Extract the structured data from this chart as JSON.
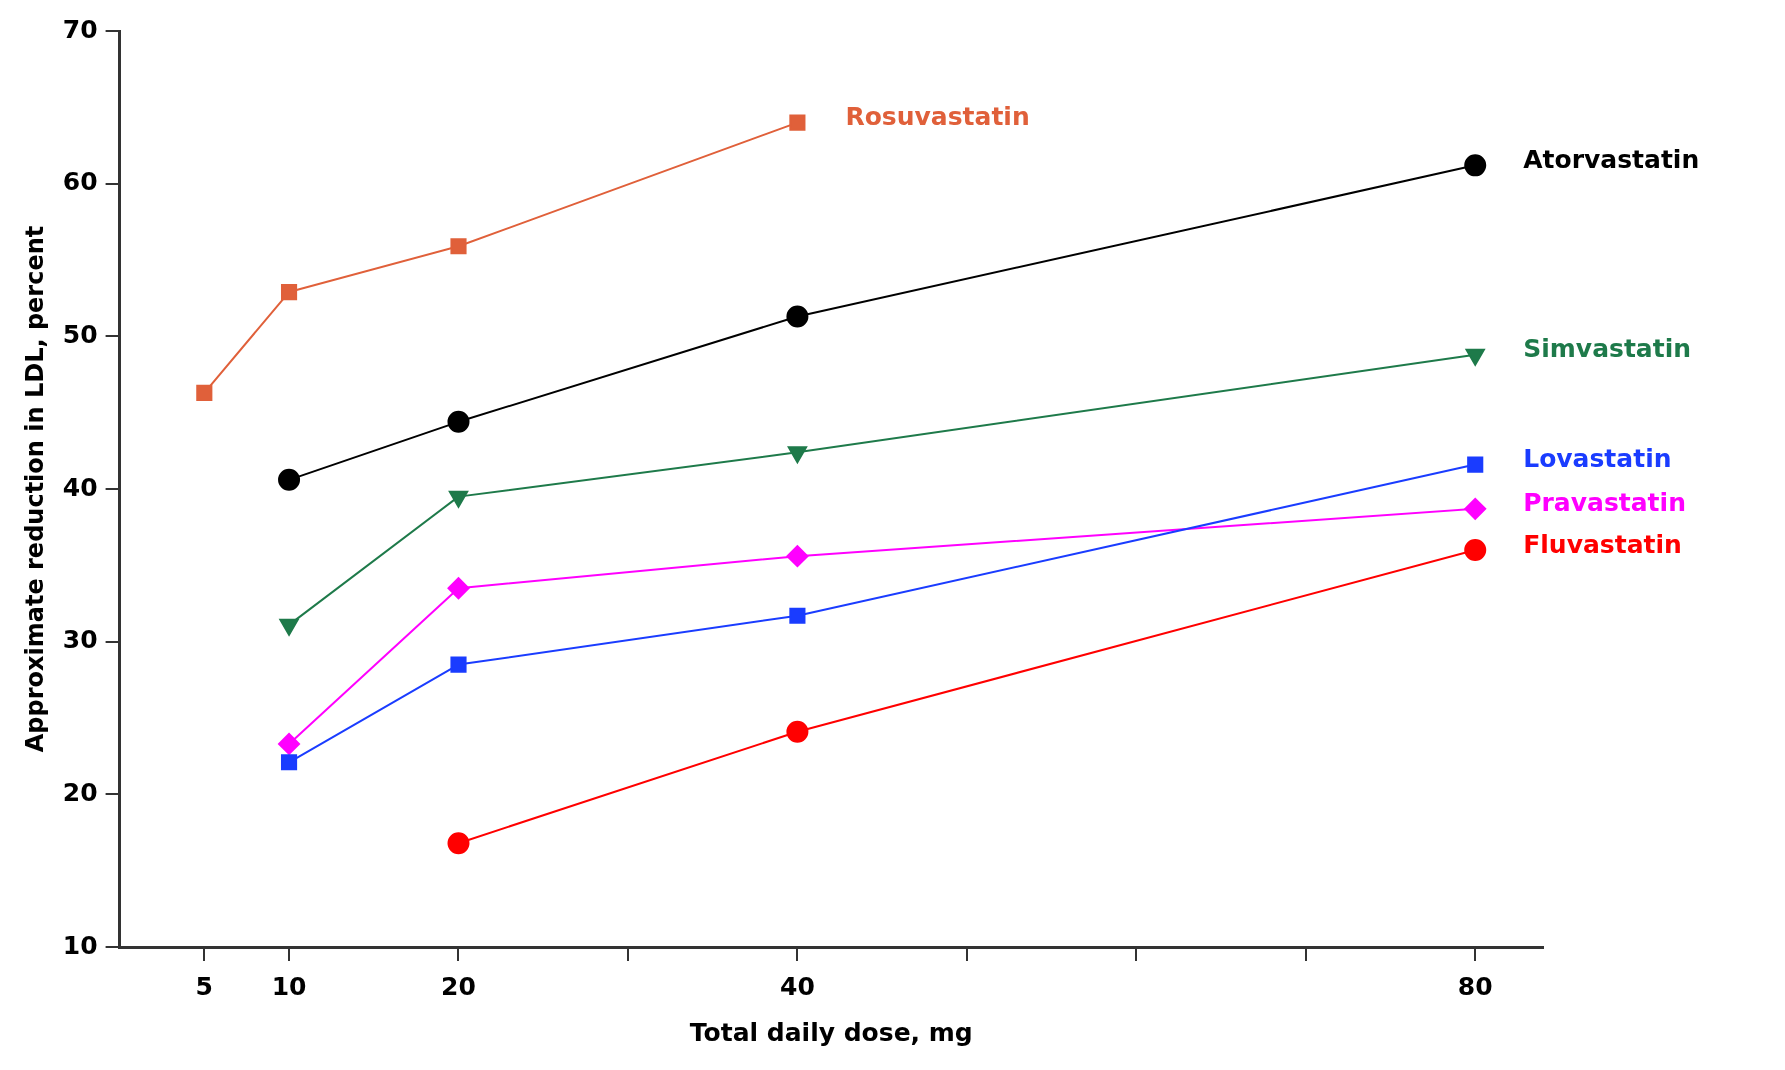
{
  "chart_data": {
    "type": "line",
    "xlabel": "Total daily dose, mg",
    "ylabel": "Approximate reduction in LDL, percent",
    "xlim": [
      0,
      84
    ],
    "xticks": [
      5,
      10,
      20,
      {
        "value": 30,
        "label": null
      },
      40,
      {
        "value": 50,
        "label": null
      },
      {
        "value": 60,
        "label": null
      },
      {
        "value": 70,
        "label": null
      },
      80
    ],
    "ylim": [
      10,
      70
    ],
    "yticks": [
      10,
      20,
      30,
      40,
      50,
      60,
      70
    ],
    "grid": false,
    "legend": false,
    "series": [
      {
        "name": "Rosuvastatin",
        "color": "#e0603a",
        "marker": "square",
        "x": [
          5,
          10,
          20,
          40
        ],
        "values": [
          46.3,
          52.9,
          55.9,
          64.0
        ]
      },
      {
        "name": "Atorvastatin",
        "color": "#000000",
        "marker": "circle",
        "x": [
          10,
          20,
          40,
          80
        ],
        "values": [
          40.6,
          44.4,
          51.3,
          61.2
        ]
      },
      {
        "name": "Simvastatin",
        "color": "#1e7a4a",
        "marker": "triangle",
        "x": [
          10,
          20,
          40,
          80
        ],
        "values": [
          31.1,
          39.5,
          42.4,
          48.8
        ]
      },
      {
        "name": "Lovastatin",
        "color": "#1a3cff",
        "marker": "square",
        "x": [
          10,
          20,
          40,
          80
        ],
        "values": [
          22.1,
          28.5,
          31.7,
          41.6
        ]
      },
      {
        "name": "Pravastatin",
        "color": "#ff00ff",
        "marker": "diamond",
        "x": [
          10,
          20,
          40,
          80
        ],
        "values": [
          23.3,
          33.5,
          35.6,
          38.7
        ]
      },
      {
        "name": "Fluvastatin",
        "color": "#ff0000",
        "marker": "circle",
        "x": [
          20,
          40,
          80
        ],
        "values": [
          16.8,
          24.1,
          36.0
        ]
      }
    ]
  }
}
